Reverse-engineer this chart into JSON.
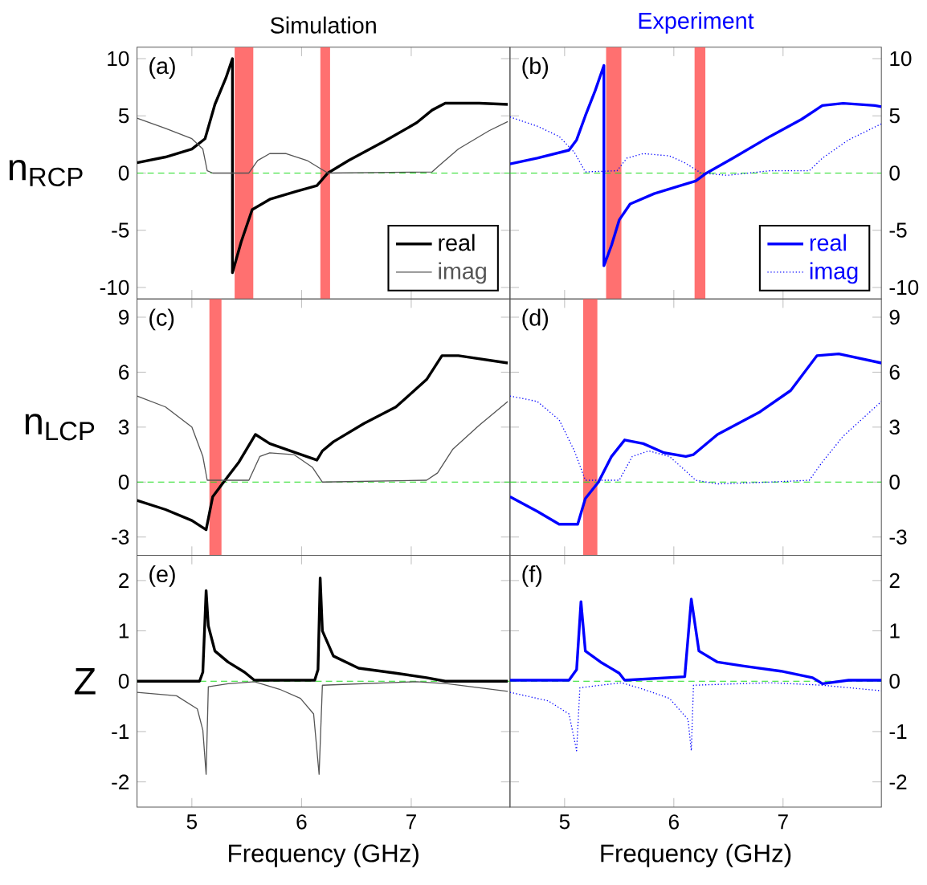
{
  "chart_data": [
    {
      "type": "line",
      "title": "Simulation",
      "ylabel": "n$_{RCP}$",
      "annotations": [
        "(a)"
      ],
      "xlim": [
        4.5,
        7.9
      ],
      "ylim": [
        -11,
        11
      ],
      "xticks": [
        5,
        6,
        7
      ],
      "yticks": [
        -10,
        -5,
        0,
        5,
        10
      ],
      "tick_labels": "y",
      "legend": "bottom right",
      "ref_lines": [
        {
          "axis": "y",
          "value": 0,
          "color": "#22dd22",
          "line_style": "dashed"
        }
      ],
      "bands": [
        {
          "axis": "x",
          "from": 5.39,
          "to": 5.56,
          "color": "#ff7070"
        },
        {
          "axis": "x",
          "from": 6.17,
          "to": 6.26,
          "color": "#ff7070"
        }
      ],
      "series": [
        {
          "name": "real",
          "color": "#000000",
          "line_style": "solid",
          "x": [
            4.5,
            4.76,
            5.0,
            5.12,
            5.21,
            5.31,
            5.37,
            5.37,
            5.45,
            5.55,
            5.71,
            5.95,
            6.14,
            6.24,
            6.43,
            6.76,
            7.05,
            7.19,
            7.31,
            7.62,
            7.88
          ],
          "values": [
            0.9,
            1.4,
            2.1,
            3.0,
            6.0,
            8.3,
            10.0,
            -8.7,
            -6.0,
            -3.2,
            -2.3,
            -1.6,
            -1.1,
            0,
            1.1,
            2.8,
            4.4,
            5.5,
            6.1,
            6.1,
            6.0
          ]
        },
        {
          "name": "imag",
          "color": "#555555",
          "line_style": "solid",
          "x": [
            4.5,
            4.76,
            5.0,
            5.1,
            5.14,
            5.19,
            5.52,
            5.6,
            5.71,
            5.86,
            6.05,
            6.17,
            6.24,
            7.19,
            7.26,
            7.43,
            7.71,
            7.88
          ],
          "values": [
            4.8,
            3.9,
            3.0,
            2.1,
            0.2,
            0,
            0,
            1.1,
            1.7,
            1.7,
            1.1,
            0.4,
            0,
            0.1,
            0.7,
            2.1,
            3.7,
            4.5
          ]
        }
      ]
    },
    {
      "type": "line",
      "title": "Experiment",
      "annotations": [
        "(b)"
      ],
      "xlim": [
        4.5,
        7.9
      ],
      "ylim": [
        -11,
        11
      ],
      "xticks": [
        5,
        6,
        7
      ],
      "yticks": [
        -10,
        -5,
        0,
        5,
        10
      ],
      "tick_labels": "y",
      "legend": "bottom right",
      "ref_lines": [
        {
          "axis": "y",
          "value": 0,
          "color": "#22dd22",
          "line_style": "dashed"
        }
      ],
      "bands": [
        {
          "axis": "x",
          "from": 5.38,
          "to": 5.52,
          "color": "#ff7070"
        },
        {
          "axis": "x",
          "from": 6.19,
          "to": 6.29,
          "color": "#ff7070"
        }
      ],
      "series": [
        {
          "name": "real",
          "color": "#0000ff",
          "line_style": "solid",
          "x": [
            4.5,
            4.75,
            5.04,
            5.11,
            5.19,
            5.28,
            5.36,
            5.36,
            5.43,
            5.5,
            5.6,
            5.82,
            6.06,
            6.2,
            6.3,
            6.54,
            6.88,
            7.17,
            7.36,
            7.55,
            7.84,
            7.9
          ],
          "values": [
            0.8,
            1.3,
            2.0,
            2.9,
            5.0,
            7.2,
            9.4,
            -8.1,
            -6.3,
            -4.1,
            -2.7,
            -1.8,
            -1.1,
            -0.7,
            0,
            1.3,
            3.2,
            4.7,
            5.9,
            6.1,
            5.9,
            5.8
          ]
        },
        {
          "name": "imag",
          "color": "#0000ff",
          "line_style": "dotted",
          "x": [
            4.5,
            4.75,
            4.95,
            5.09,
            5.19,
            5.48,
            5.57,
            5.72,
            5.96,
            6.1,
            6.25,
            6.49,
            6.88,
            7.24,
            7.36,
            7.6,
            7.9
          ],
          "values": [
            4.9,
            4.1,
            3.2,
            1.8,
            0.1,
            0.2,
            1.3,
            1.7,
            1.5,
            0.9,
            0,
            -0.2,
            0.2,
            0.2,
            1.3,
            2.9,
            4.3
          ]
        }
      ]
    },
    {
      "type": "line",
      "ylabel": "n$_{LCP}$",
      "annotations": [
        "(c)"
      ],
      "xlim": [
        4.5,
        7.9
      ],
      "ylim": [
        -4,
        10
      ],
      "xticks": [
        5,
        6,
        7
      ],
      "yticks": [
        -3,
        0,
        3,
        6,
        9
      ],
      "tick_labels": "y",
      "ref_lines": [
        {
          "axis": "y",
          "value": 0,
          "color": "#22dd22",
          "line_style": "dashed"
        }
      ],
      "bands": [
        {
          "axis": "x",
          "from": 5.16,
          "to": 5.27,
          "color": "#ff7070"
        }
      ],
      "series": [
        {
          "color": "#000000",
          "line_style": "solid",
          "x": [
            4.5,
            4.76,
            5.0,
            5.13,
            5.19,
            5.29,
            5.43,
            5.58,
            5.71,
            5.95,
            6.14,
            6.19,
            6.29,
            6.57,
            6.86,
            7.14,
            7.28,
            7.43,
            7.88
          ],
          "values": [
            -1.0,
            -1.5,
            -2.1,
            -2.6,
            -0.8,
            0,
            1.1,
            2.6,
            2.1,
            1.6,
            1.2,
            1.7,
            2.2,
            3.2,
            4.1,
            5.6,
            6.9,
            6.9,
            6.5
          ]
        },
        {
          "color": "#555555",
          "line_style": "solid",
          "x": [
            4.5,
            4.76,
            5.0,
            5.1,
            5.14,
            5.52,
            5.62,
            5.71,
            5.93,
            6.1,
            6.19,
            7.14,
            7.24,
            7.38,
            7.62,
            7.88
          ],
          "values": [
            4.7,
            4.1,
            3.0,
            1.4,
            0.1,
            0.1,
            1.4,
            1.6,
            1.5,
            0.8,
            0,
            0.1,
            0.5,
            1.8,
            3.1,
            4.4
          ]
        }
      ]
    },
    {
      "type": "line",
      "annotations": [
        "(d)"
      ],
      "xlim": [
        4.5,
        7.9
      ],
      "ylim": [
        -4,
        10
      ],
      "xticks": [
        5,
        6,
        7
      ],
      "yticks": [
        -3,
        0,
        3,
        6,
        9
      ],
      "tick_labels": "y",
      "ref_lines": [
        {
          "axis": "y",
          "value": 0,
          "color": "#22dd22",
          "line_style": "dashed"
        }
      ],
      "bands": [
        {
          "axis": "x",
          "from": 5.17,
          "to": 5.3,
          "color": "#ff7070"
        }
      ],
      "series": [
        {
          "color": "#0000ff",
          "line_style": "solid",
          "x": [
            4.5,
            4.75,
            4.95,
            5.12,
            5.19,
            5.31,
            5.43,
            5.55,
            5.72,
            5.91,
            6.11,
            6.18,
            6.4,
            6.78,
            7.07,
            7.31,
            7.51,
            7.9
          ],
          "values": [
            -0.8,
            -1.6,
            -2.3,
            -2.3,
            -0.9,
            0,
            1.4,
            2.3,
            2.1,
            1.6,
            1.4,
            1.5,
            2.6,
            3.8,
            5.0,
            6.9,
            7.0,
            6.5
          ]
        },
        {
          "color": "#0000ff",
          "line_style": "dotted",
          "x": [
            4.5,
            4.75,
            4.95,
            5.09,
            5.19,
            5.5,
            5.62,
            5.77,
            5.96,
            6.11,
            6.2,
            6.4,
            6.88,
            7.24,
            7.36,
            7.55,
            7.9
          ],
          "values": [
            4.7,
            4.4,
            3.4,
            1.7,
            0.1,
            0.1,
            1.4,
            1.7,
            1.4,
            0.6,
            0.1,
            -0.1,
            0,
            0.1,
            1.1,
            2.5,
            4.4
          ]
        }
      ]
    },
    {
      "type": "line",
      "ylabel": "Z",
      "xlabel": "Frequency (GHz)",
      "annotations": [
        "(e)"
      ],
      "xlim": [
        4.5,
        7.9
      ],
      "ylim": [
        -2.5,
        2.5
      ],
      "xticks": [
        5,
        6,
        7
      ],
      "yticks": [
        -2,
        -1,
        0,
        1,
        2
      ],
      "ref_lines": [
        {
          "axis": "y",
          "value": 0,
          "color": "#22dd22",
          "line_style": "dashed"
        }
      ],
      "series": [
        {
          "color": "#000000",
          "line_style": "solid",
          "x": [
            4.5,
            5.07,
            5.1,
            5.13,
            5.15,
            5.21,
            5.33,
            5.48,
            5.57,
            6.12,
            6.15,
            6.17,
            6.19,
            6.29,
            6.52,
            6.86,
            7.14,
            7.31,
            7.88
          ],
          "values": [
            0,
            0,
            0.18,
            1.8,
            1.1,
            0.6,
            0.38,
            0.18,
            0.02,
            0.02,
            0.23,
            2.05,
            1.0,
            0.5,
            0.26,
            0.16,
            0.07,
            0,
            0
          ]
        },
        {
          "color": "#555555",
          "line_style": "solid",
          "x": [
            4.5,
            4.86,
            5.05,
            5.1,
            5.13,
            5.15,
            5.33,
            5.57,
            5.8,
            5.99,
            6.11,
            6.16,
            6.19,
            7.05,
            7.33,
            7.88
          ],
          "values": [
            -0.22,
            -0.29,
            -0.55,
            -0.97,
            -1.85,
            -0.11,
            -0.05,
            -0.01,
            -0.16,
            -0.34,
            -0.65,
            -1.85,
            -0.08,
            -0.01,
            -0.05,
            -0.2
          ]
        }
      ]
    },
    {
      "type": "line",
      "xlabel": "Frequency (GHz)",
      "annotations": [
        "(f)"
      ],
      "xlim": [
        4.5,
        7.9
      ],
      "ylim": [
        -2.5,
        2.5
      ],
      "xticks": [
        5,
        6,
        7
      ],
      "yticks": [
        -2,
        -1,
        0,
        1,
        2
      ],
      "ref_lines": [
        {
          "axis": "y",
          "value": 0,
          "color": "#22dd22",
          "line_style": "dashed"
        }
      ],
      "series": [
        {
          "color": "#0000ff",
          "line_style": "solid",
          "x": [
            4.5,
            5.04,
            5.11,
            5.15,
            5.19,
            5.33,
            5.5,
            5.55,
            6.1,
            6.16,
            6.23,
            6.4,
            6.64,
            6.98,
            7.27,
            7.36,
            7.6,
            7.9
          ],
          "values": [
            0.02,
            0.02,
            0.23,
            1.58,
            0.6,
            0.38,
            0.16,
            0.02,
            0.09,
            1.63,
            0.6,
            0.38,
            0.3,
            0.2,
            0.07,
            -0.05,
            0.02,
            0.02
          ]
        },
        {
          "color": "#0000ff",
          "line_style": "dotted",
          "x": [
            4.5,
            4.85,
            5.04,
            5.11,
            5.14,
            5.52,
            5.72,
            5.96,
            6.13,
            6.16,
            6.18,
            6.88,
            7.36,
            7.9
          ],
          "values": [
            -0.22,
            -0.39,
            -0.65,
            -1.38,
            -0.13,
            -0.03,
            -0.16,
            -0.34,
            -0.76,
            -1.38,
            -0.08,
            -0.03,
            -0.08,
            -0.19
          ]
        }
      ]
    }
  ]
}
